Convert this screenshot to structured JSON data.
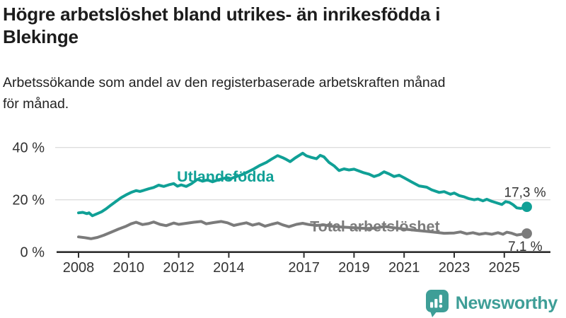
{
  "header": {
    "title": "Högre arbetslöshet bland utrikes- än inrikesfödda i Blekinge",
    "title_lines": [
      "Högre arbetslöshet bland utrikes- än inrikesfödda i",
      "Blekinge"
    ],
    "subtitle": "Arbetssökande som andel av den registerbaserade arbetskraften månad för månad.",
    "subtitle_lines": [
      "Arbetssökande som andel av den registerbaserade arbetskraften månad",
      "för månad."
    ]
  },
  "branding": {
    "logo_text": "Newsworthy",
    "logo_color": "#3E9E97",
    "logo_icon": "bar-chart-speech-bubble"
  },
  "chart_data": {
    "type": "line",
    "title": "",
    "xlabel": "",
    "ylabel": "",
    "x_axis": {
      "range": [
        2007.6,
        2026.4
      ],
      "ticks": [
        2008,
        2010,
        2012,
        2014,
        2017,
        2019,
        2021,
        2023,
        2025
      ],
      "tick_labels": [
        "2008",
        "2010",
        "2012",
        "2014",
        "2017",
        "2019",
        "2021",
        "2023",
        "2025"
      ]
    },
    "y_axis": {
      "range": [
        0,
        42
      ],
      "ticks": [
        0,
        20,
        40
      ],
      "tick_labels": [
        "0 %",
        "20 %",
        "40 %"
      ],
      "gridlines": [
        20,
        40
      ],
      "gridline_color": "#dedede",
      "axis_color": "#2e2e2e",
      "label_color": "#333333"
    },
    "legend_position": "inline-labels",
    "series": [
      {
        "name": "Utlandsfödda",
        "color": "#10A096",
        "end_value": 17.3,
        "end_label": "17,3 %",
        "label_anchor": {
          "x": 2011.93,
          "pct": 26.95
        },
        "points": [
          [
            2008.0,
            15.0
          ],
          [
            2008.17,
            15.2
          ],
          [
            2008.33,
            14.7
          ],
          [
            2008.42,
            15.0
          ],
          [
            2008.55,
            13.9
          ],
          [
            2008.75,
            14.7
          ],
          [
            2008.92,
            15.4
          ],
          [
            2009.1,
            16.5
          ],
          [
            2009.3,
            18.0
          ],
          [
            2009.5,
            19.4
          ],
          [
            2009.7,
            20.8
          ],
          [
            2009.9,
            21.9
          ],
          [
            2010.1,
            22.8
          ],
          [
            2010.3,
            23.5
          ],
          [
            2010.45,
            23.2
          ],
          [
            2010.6,
            23.6
          ],
          [
            2010.8,
            24.2
          ],
          [
            2011.0,
            24.7
          ],
          [
            2011.2,
            25.6
          ],
          [
            2011.4,
            25.1
          ],
          [
            2011.6,
            25.7
          ],
          [
            2011.8,
            26.2
          ],
          [
            2011.95,
            25.2
          ],
          [
            2012.1,
            25.7
          ],
          [
            2012.3,
            25.1
          ],
          [
            2012.5,
            26.1
          ],
          [
            2012.75,
            27.8
          ],
          [
            2012.95,
            27.1
          ],
          [
            2013.15,
            27.6
          ],
          [
            2013.35,
            26.9
          ],
          [
            2013.6,
            27.7
          ],
          [
            2013.85,
            28.3
          ],
          [
            2014.05,
            28.0
          ],
          [
            2014.25,
            28.7
          ],
          [
            2014.5,
            29.5
          ],
          [
            2014.75,
            30.6
          ],
          [
            2015.0,
            31.8
          ],
          [
            2015.25,
            33.2
          ],
          [
            2015.5,
            34.3
          ],
          [
            2015.7,
            35.5
          ],
          [
            2015.95,
            36.9
          ],
          [
            2016.15,
            36.1
          ],
          [
            2016.3,
            35.4
          ],
          [
            2016.45,
            34.6
          ],
          [
            2016.65,
            36.0
          ],
          [
            2016.95,
            37.8
          ],
          [
            2017.1,
            36.8
          ],
          [
            2017.3,
            36.2
          ],
          [
            2017.5,
            35.7
          ],
          [
            2017.65,
            37.0
          ],
          [
            2017.8,
            36.4
          ],
          [
            2018.0,
            34.3
          ],
          [
            2018.2,
            33.0
          ],
          [
            2018.4,
            31.2
          ],
          [
            2018.6,
            31.8
          ],
          [
            2018.8,
            31.4
          ],
          [
            2019.0,
            31.7
          ],
          [
            2019.2,
            31.0
          ],
          [
            2019.4,
            30.3
          ],
          [
            2019.6,
            29.8
          ],
          [
            2019.8,
            28.9
          ],
          [
            2020.0,
            29.5
          ],
          [
            2020.2,
            30.7
          ],
          [
            2020.4,
            29.9
          ],
          [
            2020.6,
            28.9
          ],
          [
            2020.8,
            29.4
          ],
          [
            2021.0,
            28.4
          ],
          [
            2021.3,
            26.8
          ],
          [
            2021.6,
            25.3
          ],
          [
            2021.9,
            24.8
          ],
          [
            2022.1,
            23.8
          ],
          [
            2022.4,
            22.8
          ],
          [
            2022.6,
            23.1
          ],
          [
            2022.85,
            22.1
          ],
          [
            2023.0,
            22.6
          ],
          [
            2023.2,
            21.6
          ],
          [
            2023.4,
            21.1
          ],
          [
            2023.6,
            20.4
          ],
          [
            2023.8,
            20.0
          ],
          [
            2023.95,
            20.3
          ],
          [
            2024.15,
            19.6
          ],
          [
            2024.3,
            20.2
          ],
          [
            2024.5,
            19.4
          ],
          [
            2024.7,
            18.8
          ],
          [
            2024.9,
            18.2
          ],
          [
            2025.05,
            19.3
          ],
          [
            2025.2,
            19.0
          ],
          [
            2025.35,
            18.1
          ],
          [
            2025.5,
            16.9
          ],
          [
            2025.65,
            16.7
          ],
          [
            2025.8,
            16.9
          ],
          [
            2025.9,
            17.3
          ]
        ]
      },
      {
        "name": "Total arbetslöshet",
        "color": "#7B7B7B",
        "end_value": 7.1,
        "end_label": "7,1 %",
        "label_anchor": {
          "x": 2017.24,
          "pct": 7.9
        },
        "points": [
          [
            2008.0,
            5.8
          ],
          [
            2008.25,
            5.5
          ],
          [
            2008.5,
            5.1
          ],
          [
            2008.75,
            5.6
          ],
          [
            2009.0,
            6.4
          ],
          [
            2009.3,
            7.6
          ],
          [
            2009.6,
            8.8
          ],
          [
            2009.9,
            9.9
          ],
          [
            2010.1,
            10.8
          ],
          [
            2010.3,
            11.4
          ],
          [
            2010.55,
            10.5
          ],
          [
            2010.8,
            10.9
          ],
          [
            2011.0,
            11.5
          ],
          [
            2011.25,
            10.6
          ],
          [
            2011.5,
            10.1
          ],
          [
            2011.8,
            11.1
          ],
          [
            2012.0,
            10.6
          ],
          [
            2012.3,
            11.0
          ],
          [
            2012.6,
            11.4
          ],
          [
            2012.9,
            11.7
          ],
          [
            2013.1,
            10.8
          ],
          [
            2013.4,
            11.3
          ],
          [
            2013.7,
            11.7
          ],
          [
            2013.95,
            11.2
          ],
          [
            2014.2,
            10.2
          ],
          [
            2014.45,
            10.7
          ],
          [
            2014.7,
            11.2
          ],
          [
            2014.95,
            10.3
          ],
          [
            2015.2,
            10.9
          ],
          [
            2015.45,
            9.9
          ],
          [
            2015.7,
            10.6
          ],
          [
            2015.95,
            11.2
          ],
          [
            2016.15,
            10.4
          ],
          [
            2016.4,
            9.7
          ],
          [
            2016.7,
            10.6
          ],
          [
            2016.95,
            11.0
          ],
          [
            2017.2,
            10.5
          ],
          [
            2017.5,
            10.2
          ],
          [
            2017.8,
            10.4
          ],
          [
            2018.1,
            9.9
          ],
          [
            2018.5,
            9.6
          ],
          [
            2019.0,
            9.3
          ],
          [
            2019.5,
            9.0
          ],
          [
            2019.9,
            9.2
          ],
          [
            2020.2,
            9.8
          ],
          [
            2020.6,
            9.3
          ],
          [
            2021.0,
            8.8
          ],
          [
            2021.5,
            8.3
          ],
          [
            2022.0,
            7.8
          ],
          [
            2022.3,
            7.5
          ],
          [
            2022.6,
            7.2
          ],
          [
            2023.0,
            7.3
          ],
          [
            2023.25,
            7.7
          ],
          [
            2023.5,
            7.0
          ],
          [
            2023.75,
            7.4
          ],
          [
            2024.0,
            6.8
          ],
          [
            2024.25,
            7.2
          ],
          [
            2024.5,
            6.8
          ],
          [
            2024.75,
            7.4
          ],
          [
            2024.95,
            6.8
          ],
          [
            2025.1,
            7.6
          ],
          [
            2025.3,
            7.2
          ],
          [
            2025.5,
            6.5
          ],
          [
            2025.7,
            6.8
          ],
          [
            2025.9,
            7.1
          ]
        ]
      }
    ]
  }
}
